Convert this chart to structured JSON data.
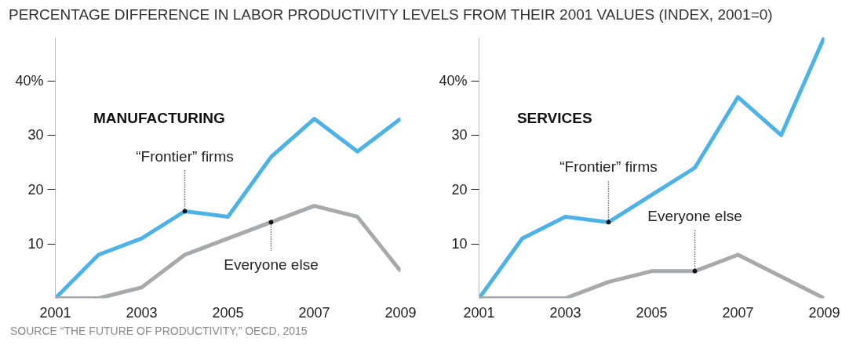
{
  "chart_data": [
    {
      "type": "line",
      "title": "PERCENTAGE DIFFERENCE IN LABOR PRODUCTIVITY LEVELS FROM THEIR 2001 VALUES (INDEX, 2001=0)",
      "subtitle": "MANUFACTURING",
      "x": [
        2001,
        2002,
        2003,
        2004,
        2005,
        2006,
        2007,
        2008,
        2009
      ],
      "series": [
        {
          "name": "“Frontier” firms",
          "color": "#4db3e6",
          "values": [
            0,
            8,
            11,
            16,
            15,
            26,
            33,
            27,
            33
          ]
        },
        {
          "name": "Everyone else",
          "color": "#a7a9ac",
          "values": [
            0,
            0,
            2,
            8,
            11,
            14,
            17,
            15,
            5
          ]
        }
      ],
      "xlim": [
        2001,
        2009
      ],
      "ylim": [
        0,
        48
      ],
      "xticks": [
        2001,
        2003,
        2005,
        2007,
        2009
      ],
      "yticks": [
        10,
        20,
        30,
        {
          "value": 40,
          "label": "40%"
        }
      ],
      "grid": false,
      "annotations": [
        "SOURCE “THE FUTURE OF PRODUCTIVITY,” OECD, 2015"
      ]
    },
    {
      "type": "line",
      "title": "SERVICES",
      "x": [
        2001,
        2002,
        2003,
        2004,
        2005,
        2006,
        2007,
        2008,
        2009
      ],
      "series": [
        {
          "name": "“Frontier” firms",
          "color": "#4db3e6",
          "values": [
            0,
            11,
            15,
            14,
            19,
            24,
            37,
            30,
            48
          ]
        },
        {
          "name": "Everyone else",
          "color": "#a7a9ac",
          "values": [
            0,
            0,
            0,
            3,
            5,
            5,
            8,
            4,
            0
          ]
        }
      ],
      "xlim": [
        2001,
        2009
      ],
      "ylim": [
        0,
        48
      ],
      "xticks": [
        2001,
        2003,
        2005,
        2007,
        2009
      ],
      "yticks": [
        10,
        20,
        30,
        {
          "value": 40,
          "label": "40%"
        }
      ],
      "grid": false
    }
  ]
}
